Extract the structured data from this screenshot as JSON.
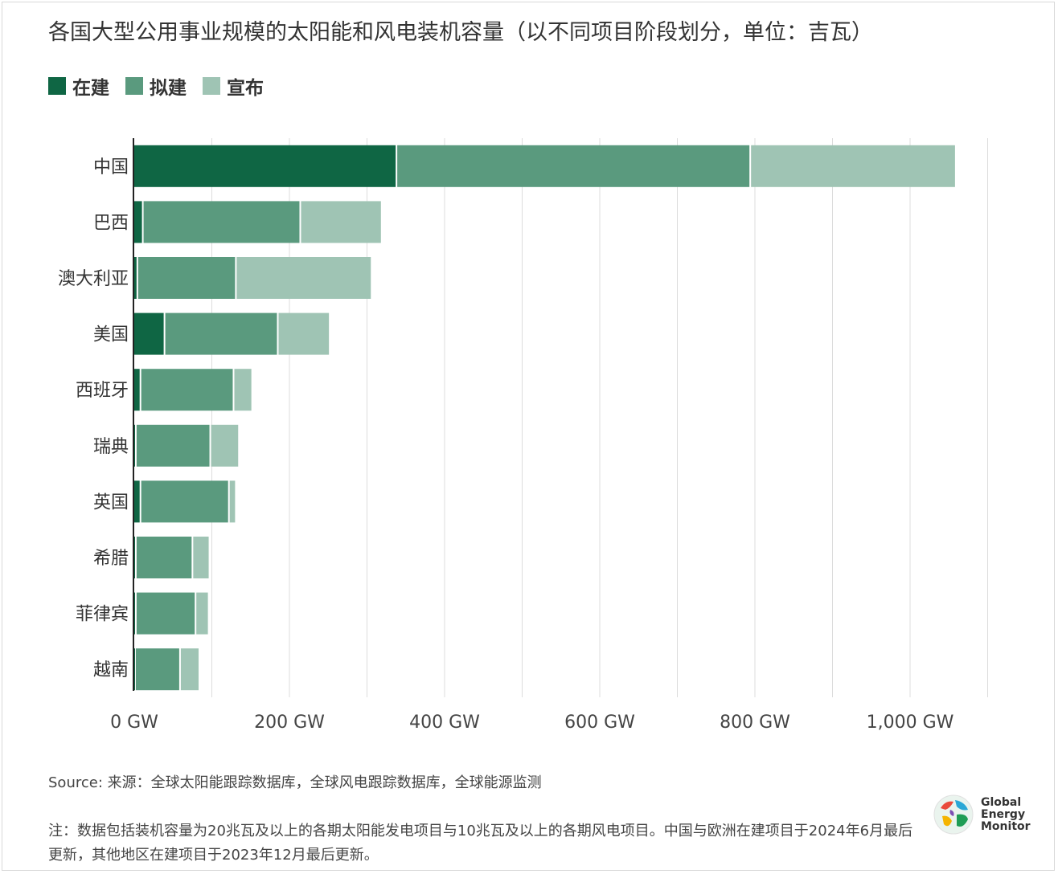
{
  "title": "各国大型公用事业规模的太阳能和风电装机容量（以不同项目阶段划分，单位：吉瓦）",
  "legend": [
    {
      "label": "在建",
      "color": "#0f6644"
    },
    {
      "label": "拟建",
      "color": "#5a9a7e"
    },
    {
      "label": "宣布",
      "color": "#9fc4b4"
    }
  ],
  "chart_data": {
    "type": "bar",
    "orientation": "horizontal",
    "stacked": true,
    "categories": [
      "中国",
      "巴西",
      "澳大利亚",
      "美国",
      "西班牙",
      "瑞典",
      "英国",
      "希腊",
      "菲律宾",
      "越南"
    ],
    "series": [
      {
        "name": "在建",
        "values": [
          339,
          12,
          5,
          40,
          9,
          3,
          9,
          3,
          3,
          2
        ]
      },
      {
        "name": "拟建",
        "values": [
          456,
          203,
          127,
          146,
          120,
          96,
          114,
          73,
          77,
          58
        ]
      },
      {
        "name": "宣布",
        "values": [
          265,
          105,
          175,
          67,
          24,
          37,
          9,
          22,
          17,
          25
        ]
      }
    ],
    "xlim": [
      0,
      1100
    ],
    "xticks": [
      0,
      200,
      400,
      600,
      800,
      1000
    ],
    "xtick_labels": [
      "0 GW",
      "200 GW",
      "400 GW",
      "600 GW",
      "800 GW",
      "1,000 GW"
    ],
    "grid": true,
    "legend_position": "top-left"
  },
  "source": "Source: 来源：全球太阳能跟踪数据库，全球风电跟踪数据库，全球能源监测",
  "note": "注：数据包括装机容量为20兆瓦及以上的各期太阳能发电项目与10兆瓦及以上的各期风电项目。中国与欧洲在建项目于2024年6月最后更新，其他地区在建项目于2023年12月最后更新。",
  "logo": {
    "line1": "Global",
    "line2": "Energy",
    "line3": "Monitor",
    "icon": "globe-icon"
  }
}
